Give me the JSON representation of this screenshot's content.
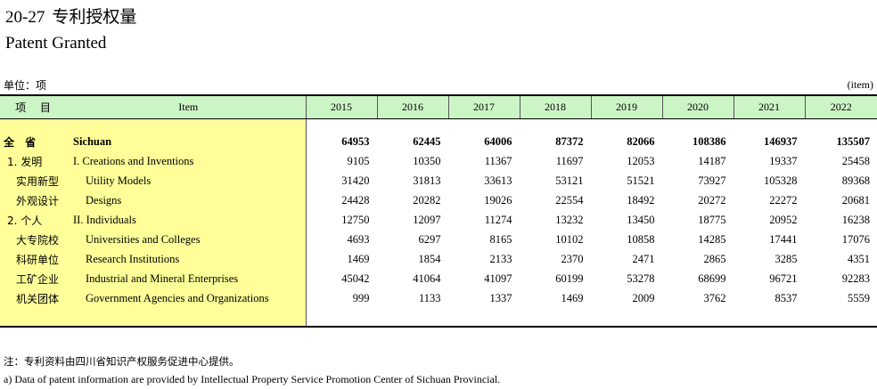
{
  "title_number": "20-27",
  "title_zh": "专利授权量",
  "title_en": "Patent Granted",
  "unit_zh": "单位：项",
  "unit_en": "(item)",
  "header": {
    "item_zh": "项  目",
    "item_en": "Item",
    "years": [
      "2015",
      "2016",
      "2017",
      "2018",
      "2019",
      "2020",
      "2021",
      "2022"
    ]
  },
  "rows": [
    {
      "zh": "全 省",
      "en": "Sichuan",
      "values": [
        "64953",
        "62445",
        "64006",
        "87372",
        "82066",
        "108386",
        "146937",
        "135507"
      ]
    },
    {
      "zh": "1. 发明",
      "en": "I. Creations and Inventions",
      "values": [
        "9105",
        "10350",
        "11367",
        "11697",
        "12053",
        "14187",
        "19337",
        "25458"
      ]
    },
    {
      "zh": "实用新型",
      "en": "Utility Models",
      "values": [
        "31420",
        "31813",
        "33613",
        "53121",
        "51521",
        "73927",
        "105328",
        "89368"
      ]
    },
    {
      "zh": "外观设计",
      "en": "Designs",
      "values": [
        "24428",
        "20282",
        "19026",
        "22554",
        "18492",
        "20272",
        "22272",
        "20681"
      ]
    },
    {
      "zh": "2. 个人",
      "en": "II. Individuals",
      "values": [
        "12750",
        "12097",
        "11274",
        "13232",
        "13450",
        "18775",
        "20952",
        "16238"
      ]
    },
    {
      "zh": "大专院校",
      "en": "Universities and Colleges",
      "values": [
        "4693",
        "6297",
        "8165",
        "10102",
        "10858",
        "14285",
        "17441",
        "17076"
      ]
    },
    {
      "zh": "科研单位",
      "en": "Research Institutions",
      "values": [
        "1469",
        "1854",
        "2133",
        "2370",
        "2471",
        "2865",
        "3285",
        "4351"
      ]
    },
    {
      "zh": "工矿企业",
      "en": "Industrial and Mineral Enterprises",
      "values": [
        "45042",
        "41064",
        "41097",
        "60199",
        "53278",
        "68699",
        "96721",
        "92283"
      ]
    },
    {
      "zh": "机关团体",
      "en": "Government Agencies and Organizations",
      "values": [
        "999",
        "1133",
        "1337",
        "1469",
        "2009",
        "3762",
        "8537",
        "5559"
      ]
    }
  ],
  "note_zh": "注：专利资料由四川省知识产权服务促进中心提供。",
  "note_en": "a)  Data of patent information are provided by Intellectual Property Service Promotion Center of Sichuan Provincial."
}
